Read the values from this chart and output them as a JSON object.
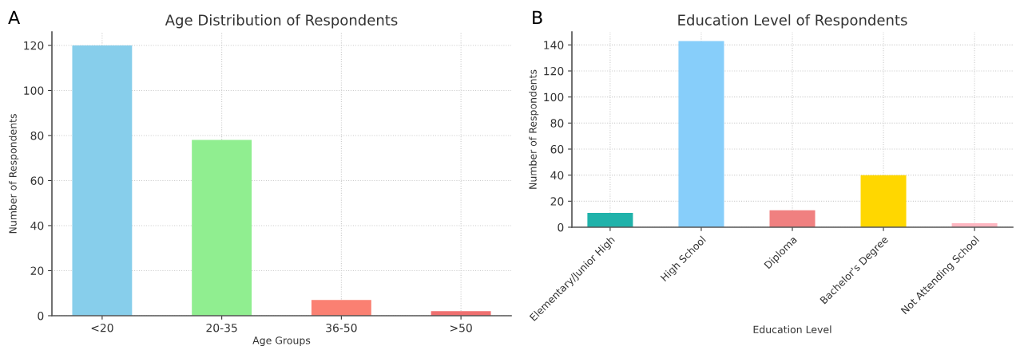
{
  "chart_data": [
    {
      "type": "bar",
      "title": "Age Distribution of Respondents",
      "xlabel": "Age Groups",
      "ylabel": "Number of Respondents",
      "annotations": [
        "A"
      ],
      "categories": [
        "<20",
        "20-35",
        "36-50",
        ">50"
      ],
      "values": [
        120,
        78,
        7,
        2
      ],
      "colors": [
        "#87ceeb",
        "#90ee90",
        "#fa8072",
        "#f07070"
      ],
      "ylim": [
        0,
        126
      ],
      "yticks": [
        0,
        20,
        40,
        60,
        80,
        100,
        120
      ],
      "grid": true
    },
    {
      "type": "bar",
      "title": "Education Level of Respondents",
      "xlabel": "Education Level",
      "ylabel": "Number of Respondents",
      "annotations": [
        "B"
      ],
      "categories": [
        "Elementary/Junior High",
        "High School",
        "Diploma",
        "Bachelor's Degree",
        "Not Attending School"
      ],
      "values": [
        11,
        143,
        13,
        40,
        3
      ],
      "colors": [
        "#20b2aa",
        "#87cefa",
        "#f08080",
        "#ffd700",
        "#ffb6c1"
      ],
      "ylim": [
        0,
        150
      ],
      "yticks": [
        0,
        20,
        40,
        60,
        80,
        100,
        120,
        140
      ],
      "grid": true
    }
  ]
}
